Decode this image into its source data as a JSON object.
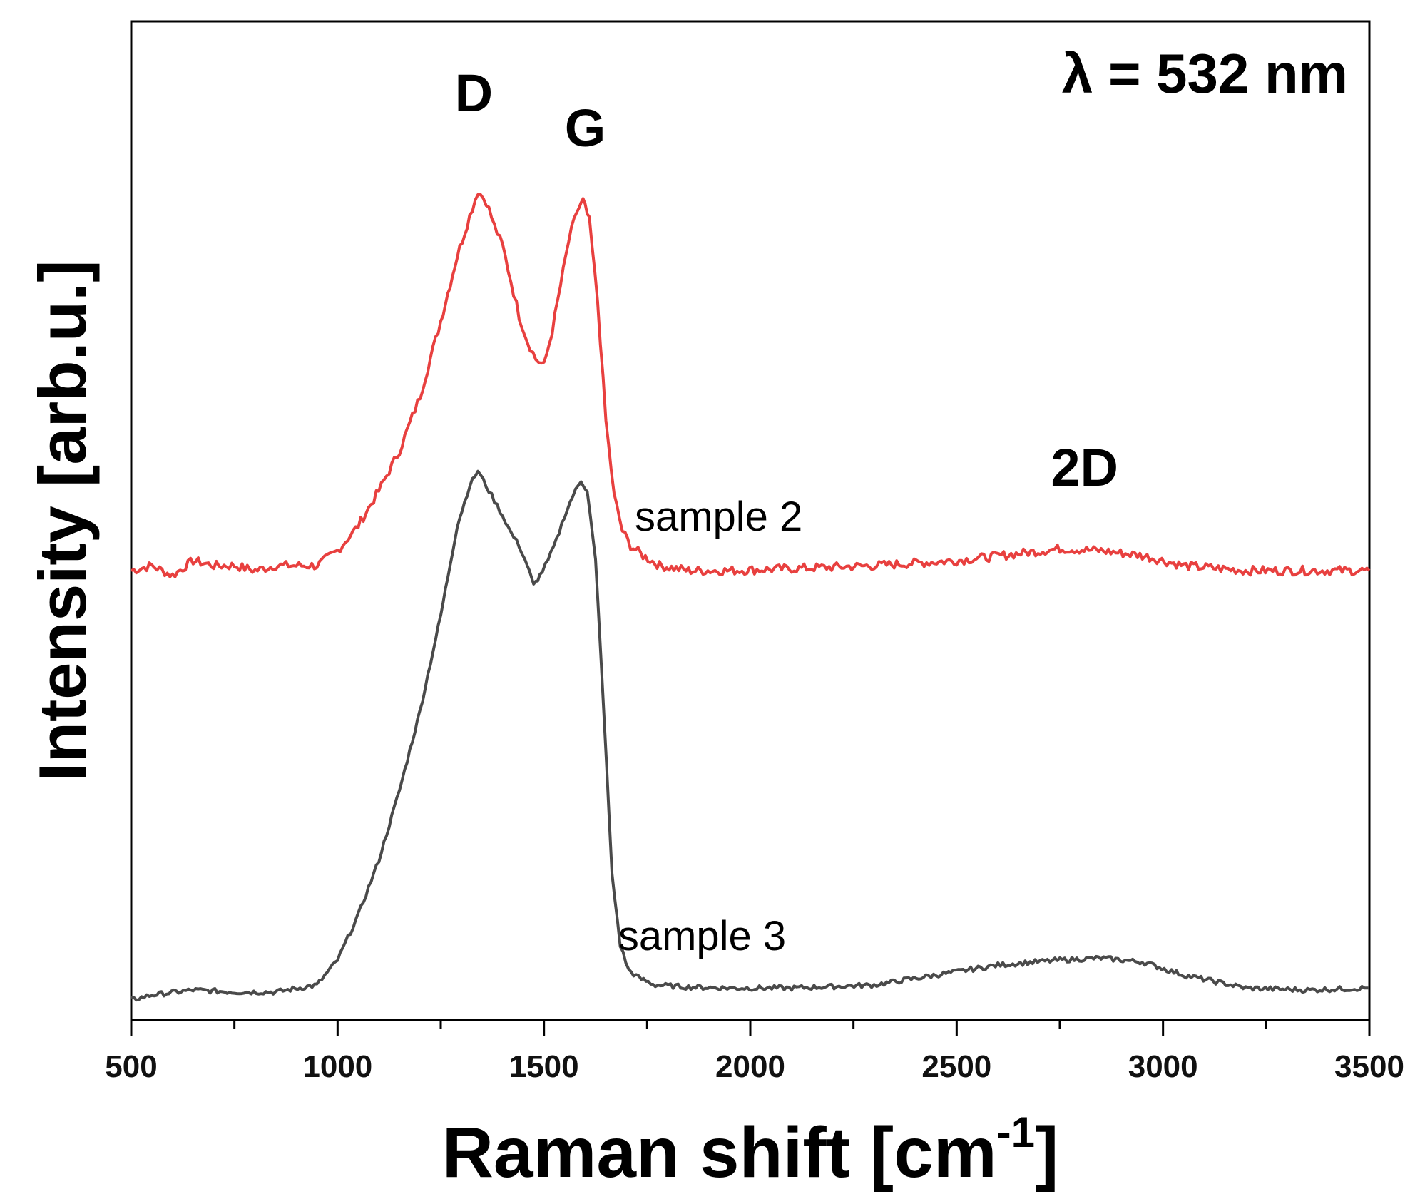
{
  "chart_data": {
    "type": "line",
    "xlabel": "Raman shift [cm",
    "xlabel_sup": "-1",
    "xlabel_close": "]",
    "ylabel": "Intensity [arb.u.]",
    "xlim": [
      500,
      3500
    ],
    "ylim": [
      0,
      10
    ],
    "x_ticks": [
      500,
      1000,
      1500,
      2000,
      2500,
      3000,
      3500
    ],
    "x_minor_step": 250,
    "y_ticks_shown": false,
    "grid": false,
    "annotation": "λ = 532 nm",
    "peak_labels": [
      {
        "text": "D",
        "x": 1330,
        "y": 9.1
      },
      {
        "text": "G",
        "x": 1600,
        "y": 8.75
      },
      {
        "text": "2D",
        "x": 2810,
        "y": 5.35
      }
    ],
    "series": [
      {
        "name": "sample 2",
        "color": "#e8403f",
        "label_position": {
          "x": 1720,
          "y": 4.9
        },
        "x": [
          500,
          550,
          600,
          650,
          700,
          750,
          800,
          850,
          900,
          950,
          1000,
          1050,
          1100,
          1150,
          1200,
          1250,
          1290,
          1320,
          1340,
          1360,
          1380,
          1400,
          1420,
          1440,
          1460,
          1480,
          1500,
          1520,
          1540,
          1560,
          1580,
          1595,
          1610,
          1630,
          1650,
          1670,
          1690,
          1710,
          1740,
          1780,
          1850,
          1950,
          2100,
          2300,
          2500,
          2650,
          2750,
          2850,
          2950,
          3050,
          3200,
          3350,
          3500
        ],
        "y": [
          4.5,
          4.55,
          4.45,
          4.6,
          4.55,
          4.55,
          4.5,
          4.55,
          4.55,
          4.55,
          4.7,
          4.95,
          5.3,
          5.7,
          6.25,
          7.0,
          7.65,
          8.05,
          8.3,
          8.2,
          7.95,
          7.75,
          7.4,
          7.05,
          6.8,
          6.62,
          6.55,
          6.9,
          7.35,
          7.8,
          8.1,
          8.2,
          8.0,
          7.2,
          6.0,
          5.25,
          4.9,
          4.75,
          4.65,
          4.55,
          4.5,
          4.5,
          4.52,
          4.55,
          4.6,
          4.67,
          4.72,
          4.7,
          4.65,
          4.55,
          4.5,
          4.5,
          4.5
        ]
      },
      {
        "name": "sample 3",
        "color": "#4a4a4a",
        "label_position": {
          "x": 1680,
          "y": 0.7
        },
        "x": [
          500,
          550,
          650,
          750,
          850,
          950,
          1000,
          1050,
          1100,
          1150,
          1200,
          1250,
          1290,
          1320,
          1340,
          1360,
          1380,
          1400,
          1420,
          1440,
          1460,
          1475,
          1490,
          1510,
          1530,
          1550,
          1570,
          1590,
          1605,
          1625,
          1645,
          1665,
          1685,
          1705,
          1730,
          1770,
          1850,
          1950,
          2100,
          2300,
          2450,
          2600,
          2750,
          2850,
          2950,
          3050,
          3200,
          3350,
          3500
        ],
        "y": [
          0.2,
          0.25,
          0.3,
          0.28,
          0.28,
          0.35,
          0.6,
          1.05,
          1.6,
          2.3,
          3.1,
          4.05,
          4.95,
          5.35,
          5.5,
          5.35,
          5.2,
          5.05,
          4.88,
          4.75,
          4.55,
          4.35,
          4.45,
          4.6,
          4.8,
          5.05,
          5.25,
          5.4,
          5.3,
          4.6,
          3.1,
          1.45,
          0.75,
          0.5,
          0.42,
          0.35,
          0.33,
          0.32,
          0.32,
          0.35,
          0.45,
          0.55,
          0.6,
          0.62,
          0.58,
          0.45,
          0.32,
          0.3,
          0.32
        ]
      }
    ]
  }
}
